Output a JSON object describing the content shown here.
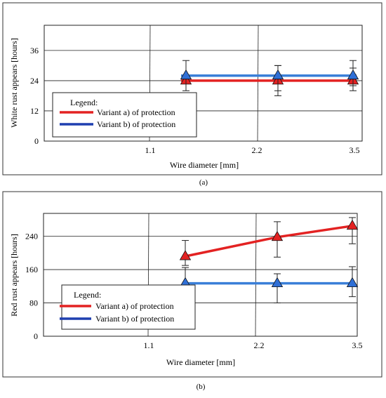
{
  "colors": {
    "series_a": "#e32222",
    "series_b": "#3a7fd8",
    "legend_b": "#1f3fb0",
    "marker_b": "#2f6fd6"
  },
  "chart_data": [
    {
      "type": "line",
      "caption": "(a)",
      "xlabel": "Wire diameter [mm]",
      "ylabel": "White rust appears [hours]",
      "x_ticks": [
        "1.1",
        "2.2",
        "3.5"
      ],
      "y_ticks": [
        0,
        12,
        24,
        36
      ],
      "ylim": [
        0,
        46
      ],
      "legend": {
        "title": "Legend:",
        "position": "bottom-left"
      },
      "grid": true,
      "series": [
        {
          "name": "Variant a) of protection",
          "color_key": "series_a",
          "points": [
            {
              "x": "1.1",
              "y": 24,
              "err_lo": 24,
              "err_hi": 24
            },
            {
              "x": "2.2",
              "y": 24,
              "err_lo": 18,
              "err_hi": 30
            },
            {
              "x": "3.5",
              "y": 24,
              "err_lo": 20,
              "err_hi": 29
            }
          ]
        },
        {
          "name": "Variant b) of protection",
          "color_key": "series_b",
          "points": [
            {
              "x": "1.1",
              "y": 26,
              "err_lo": 20,
              "err_hi": 32
            },
            {
              "x": "2.2",
              "y": 26,
              "err_lo": 20,
              "err_hi": 30
            },
            {
              "x": "3.5",
              "y": 26,
              "err_lo": 22,
              "err_hi": 32
            }
          ]
        }
      ]
    },
    {
      "type": "line",
      "caption": "(b)",
      "xlabel": "Wire diameter [mm]",
      "ylabel": "Red rust appears [hours]",
      "x_ticks": [
        "1.1",
        "2.2",
        "3.5"
      ],
      "y_ticks": [
        0,
        80,
        160,
        240
      ],
      "ylim": [
        0,
        295
      ],
      "legend": {
        "title": "Legend:",
        "position": "bottom-left"
      },
      "grid": true,
      "series": [
        {
          "name": "Variant a) of protection",
          "color_key": "series_a",
          "points": [
            {
              "x": "1.1",
              "y": 192,
              "err_lo": 170,
              "err_hi": 230
            },
            {
              "x": "2.2",
              "y": 238,
              "err_lo": 190,
              "err_hi": 275
            },
            {
              "x": "3.5",
              "y": 265,
              "err_lo": 222,
              "err_hi": 285
            }
          ]
        },
        {
          "name": "Variant b) of protection",
          "color_key": "series_b",
          "points": [
            {
              "x": "1.1",
              "y": 127,
              "err_lo": 100,
              "err_hi": 165
            },
            {
              "x": "2.2",
              "y": 127,
              "err_lo": 80,
              "err_hi": 150
            },
            {
              "x": "3.5",
              "y": 127,
              "err_lo": 95,
              "err_hi": 167
            }
          ]
        }
      ]
    }
  ]
}
